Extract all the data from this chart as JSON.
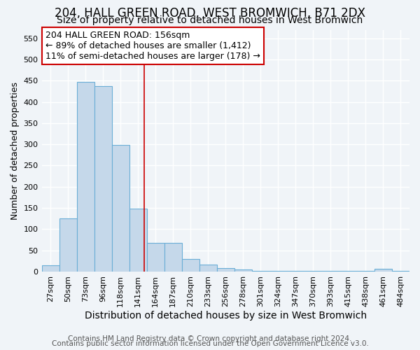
{
  "title": "204, HALL GREEN ROAD, WEST BROMWICH, B71 2DX",
  "subtitle": "Size of property relative to detached houses in West Bromwich",
  "xlabel": "Distribution of detached houses by size in West Bromwich",
  "ylabel": "Number of detached properties",
  "categories": [
    "27sqm",
    "50sqm",
    "73sqm",
    "96sqm",
    "118sqm",
    "141sqm",
    "164sqm",
    "187sqm",
    "210sqm",
    "233sqm",
    "256sqm",
    "278sqm",
    "301sqm",
    "324sqm",
    "347sqm",
    "370sqm",
    "393sqm",
    "415sqm",
    "438sqm",
    "461sqm",
    "484sqm"
  ],
  "values": [
    14,
    126,
    447,
    437,
    298,
    148,
    67,
    67,
    29,
    17,
    8,
    5,
    2,
    2,
    1,
    1,
    1,
    1,
    1,
    6,
    2
  ],
  "bar_color": "#c5d8ea",
  "bar_edge_color": "#6aaed6",
  "vline_bin_index": 5.35,
  "vline_color": "#cc0000",
  "annotation_text_line1": "204 HALL GREEN ROAD: 156sqm",
  "annotation_text_line2": "← 89% of detached houses are smaller (1,412)",
  "annotation_text_line3": "11% of semi-detached houses are larger (178) →",
  "annotation_box_facecolor": "#ffffff",
  "annotation_box_edgecolor": "#cc0000",
  "ylim": [
    0,
    570
  ],
  "yticks": [
    0,
    50,
    100,
    150,
    200,
    250,
    300,
    350,
    400,
    450,
    500,
    550
  ],
  "bg_color": "#f0f4f8",
  "plot_bg_color": "#f0f4f8",
  "grid_color": "#ffffff",
  "title_fontsize": 12,
  "subtitle_fontsize": 10,
  "xlabel_fontsize": 10,
  "ylabel_fontsize": 9,
  "tick_fontsize": 8,
  "annot_fontsize": 9,
  "footer_fontsize": 7.5,
  "footer1": "Contains HM Land Registry data © Crown copyright and database right 2024.",
  "footer2": "Contains public sector information licensed under the Open Government Licence v3.0."
}
